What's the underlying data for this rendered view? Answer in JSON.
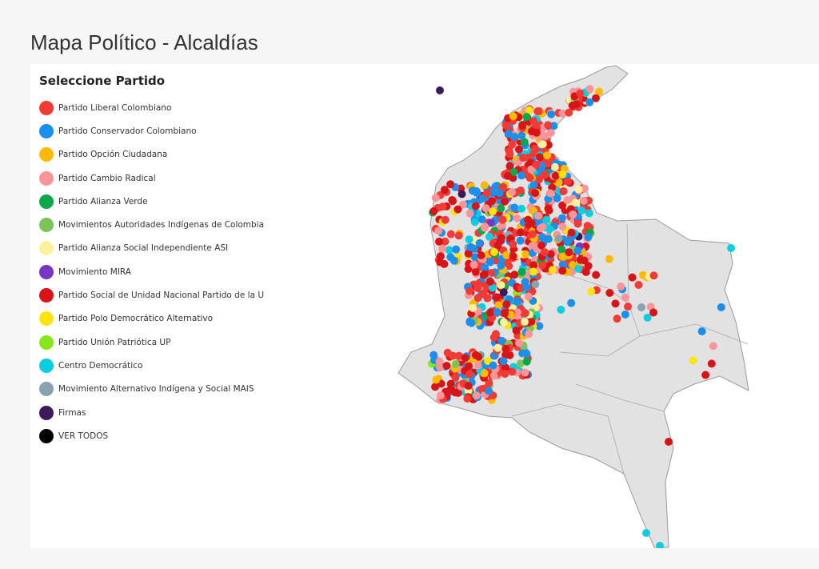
{
  "title": "Mapa Político - Alcaldías",
  "legend": {
    "heading": "Seleccione Partido",
    "items": [
      {
        "label": "Partido Liberal Colombiano",
        "color": "#f43a34"
      },
      {
        "label": "Partido Conservador Colombiano",
        "color": "#1a8ff0"
      },
      {
        "label": "Partido Opción Ciudadana",
        "color": "#ffba00"
      },
      {
        "label": "Partido Cambio Radical",
        "color": "#fb959a"
      },
      {
        "label": "Partido Alianza Verde",
        "color": "#0aa84a"
      },
      {
        "label": "Movimientos Autoridades Indígenas de Colombia",
        "color": "#7cc45a"
      },
      {
        "label": "Partido Alianza Social Independiente ASI",
        "color": "#fff09a"
      },
      {
        "label": "Movimiento MIRA",
        "color": "#7537c4"
      },
      {
        "label": "Partido Social de Unidad Nacional Partido de la U",
        "color": "#d91418"
      },
      {
        "label": "Partido Polo Democrático Alternativo",
        "color": "#ffe40a"
      },
      {
        "label": "Partido Unión Patriótica UP",
        "color": "#86e81a"
      },
      {
        "label": "Centro Democrático",
        "color": "#0bcde0"
      },
      {
        "label": "Movimiento Alternativo Indígena y Social MAIS",
        "color": "#8aa3b0"
      },
      {
        "label": "Firmas",
        "color": "#3c1a5a"
      },
      {
        "label": "VER TODOS",
        "color": "#000000"
      }
    ]
  },
  "map": {
    "land_color": "#e2e2e2",
    "border_color": "#9a9a9a"
  }
}
